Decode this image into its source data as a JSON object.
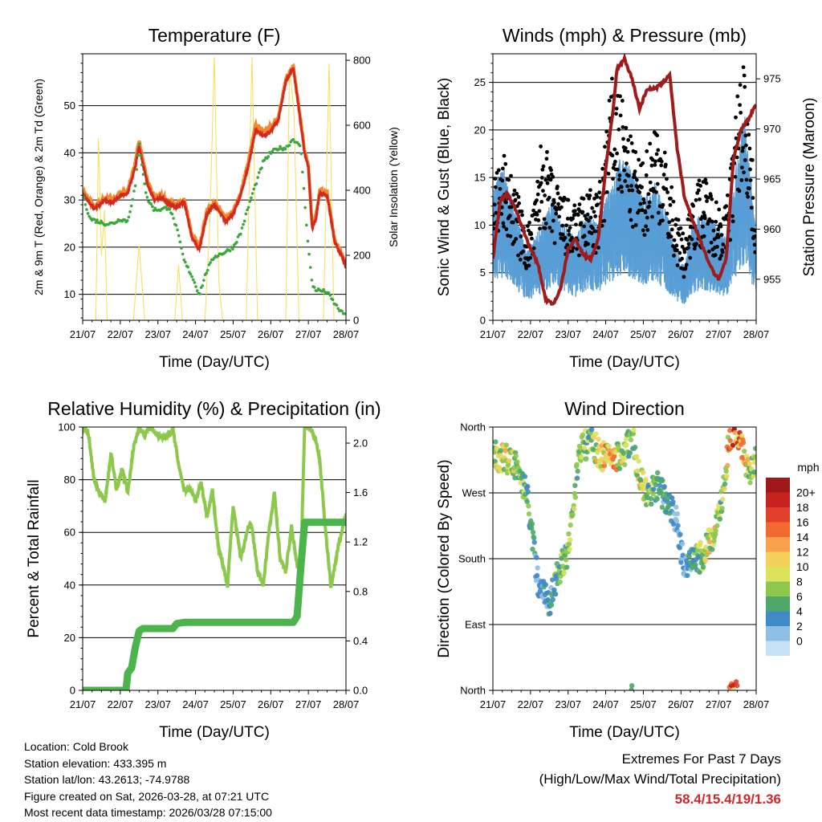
{
  "x_ticks": [
    "21/07",
    "22/07",
    "23/07",
    "24/07",
    "25/07",
    "26/07",
    "27/07",
    "28/07"
  ],
  "colors": {
    "t2m": "#d42a1e",
    "t9m": "#f2892f",
    "td": "#3aa83a",
    "solar": "#f7dd55",
    "wind": "#5a9ed6",
    "gust": "#000000",
    "pressure": "#a01c1c",
    "rh": "#8cc84b",
    "precip": "#4bb44b"
  },
  "chart_data": [
    {
      "type": "line",
      "title": "Temperature (F)",
      "xlabel": "Time (Day/UTC)",
      "ylabel": "2m & 9m T (Red, Orange) & 2m Td (Green)",
      "y2label": "Solar Insolation (Yellow)",
      "xlim": [
        0,
        7
      ],
      "ylim": [
        4.5,
        61
      ],
      "y2lim": [
        0,
        820
      ],
      "yticks": [
        "10",
        "20",
        "30",
        "40",
        "50"
      ],
      "y2ticks": [
        "0",
        "200",
        "400",
        "600",
        "800"
      ],
      "grid": true,
      "series": [
        {
          "name": "2m T",
          "axis": "y1",
          "x": [
            0,
            0.3,
            0.6,
            0.8,
            1.0,
            1.2,
            1.4,
            1.5,
            1.7,
            1.9,
            2.1,
            2.3,
            2.5,
            2.7,
            2.8,
            2.9,
            3.1,
            3.3,
            3.5,
            3.8,
            4.0,
            4.2,
            4.4,
            4.6,
            4.8,
            5.0,
            5.2,
            5.4,
            5.6,
            5.8,
            5.9,
            6.0,
            6.1,
            6.2,
            6.3,
            6.5,
            6.7,
            6.9,
            7.0
          ],
          "values": [
            31.5,
            28,
            30,
            29.5,
            31,
            31.5,
            37,
            41.5,
            34,
            30,
            30.5,
            29,
            28.5,
            29.5,
            26,
            22,
            19.5,
            27,
            29,
            25.5,
            27,
            31,
            37,
            45,
            43.5,
            44.5,
            47,
            55,
            58,
            46,
            40,
            37,
            24,
            26,
            31.5,
            31,
            21,
            18,
            15.5
          ]
        },
        {
          "name": "9m T",
          "axis": "y1",
          "x": [
            0,
            0.3,
            0.6,
            0.8,
            1.0,
            1.2,
            1.4,
            1.5,
            1.7,
            1.9,
            2.1,
            2.3,
            2.5,
            2.7,
            2.8,
            2.9,
            3.1,
            3.3,
            3.5,
            3.8,
            4.0,
            4.2,
            4.4,
            4.6,
            4.8,
            5.0,
            5.2,
            5.4,
            5.6,
            5.8,
            5.9,
            6.0,
            6.1,
            6.2,
            6.3,
            6.5,
            6.7,
            6.9,
            7.0
          ],
          "values": [
            32,
            28.5,
            30.5,
            30,
            31.5,
            32,
            38,
            42.5,
            34.5,
            30.5,
            31,
            29.5,
            29,
            30,
            26.5,
            22.5,
            20,
            27.5,
            29.5,
            26,
            27.5,
            31.5,
            38,
            46,
            44.5,
            45.5,
            47.5,
            55.5,
            58.4,
            46.5,
            40.5,
            37.5,
            24.5,
            26.5,
            32,
            31.5,
            21.5,
            18.5,
            16
          ]
        },
        {
          "name": "2m Td",
          "axis": "y1",
          "x": [
            0,
            0.2,
            0.4,
            0.6,
            0.8,
            1.0,
            1.2,
            1.4,
            1.5,
            1.7,
            1.9,
            2.1,
            2.3,
            2.5,
            2.7,
            2.9,
            3.1,
            3.3,
            3.5,
            3.8,
            4.0,
            4.2,
            4.5,
            4.8,
            5.0,
            5.2,
            5.4,
            5.6,
            5.8,
            5.9,
            6.0,
            6.1,
            6.2,
            6.5,
            6.7,
            6.9,
            7.0
          ],
          "values": [
            31,
            26,
            25.5,
            25,
            25,
            26,
            25.5,
            33,
            42,
            30.5,
            28,
            28,
            28.5,
            24,
            17,
            14,
            10,
            15,
            18,
            19,
            20,
            23,
            31,
            38,
            40,
            41,
            41,
            43,
            41,
            30,
            20,
            12,
            11,
            10.5,
            8,
            6,
            6
          ]
        },
        {
          "name": "Solar Insolation",
          "axis": "y2",
          "x": [
            0.35,
            0.42,
            0.5,
            0.58,
            0.65,
            1.35,
            1.5,
            1.65,
            2.45,
            2.55,
            2.65,
            3.25,
            3.38,
            3.5,
            3.62,
            3.72,
            4.35,
            4.5,
            4.65,
            5.4,
            5.5,
            5.62,
            5.75,
            6.4,
            6.55,
            6.68
          ],
          "values": [
            0,
            560,
            200,
            340,
            0,
            0,
            230,
            0,
            0,
            170,
            0,
            0,
            300,
            810,
            120,
            0,
            0,
            810,
            0,
            0,
            780,
            640,
            0,
            0,
            790,
            0
          ]
        }
      ]
    },
    {
      "type": "scatter",
      "title": "Winds (mph) & Pressure (mb)",
      "xlabel": "Time (Day/UTC)",
      "ylabel": "Sonic Wind & Gust (Blue, Black)",
      "y2label": "Station Pressure (Maroon)",
      "xlim": [
        0,
        7
      ],
      "ylim": [
        0,
        28
      ],
      "y2lim": [
        950.9,
        977.5
      ],
      "yticks": [
        "0",
        "5",
        "10",
        "15",
        "20",
        "25"
      ],
      "y2ticks": [
        "955",
        "960",
        "965",
        "970",
        "975"
      ],
      "grid": true,
      "series": [
        {
          "name": "Sonic Wind",
          "axis": "y1",
          "x": [
            0,
            0.3,
            0.6,
            0.9,
            1.1,
            1.3,
            1.6,
            1.9,
            2.2,
            2.5,
            2.8,
            3.0,
            3.2,
            3.4,
            3.7,
            4.0,
            4.3,
            4.6,
            4.9,
            5.1,
            5.3,
            5.6,
            5.9,
            6.2,
            6.5,
            6.7,
            7.0
          ],
          "values": [
            10,
            11,
            8,
            5,
            6,
            7,
            9,
            7,
            6,
            8,
            7,
            9,
            10,
            12,
            11,
            9,
            10,
            8,
            5,
            4,
            7,
            8,
            7,
            6,
            12,
            15,
            6
          ]
        },
        {
          "name": "Gust",
          "axis": "y1",
          "x": [
            0,
            0.3,
            0.6,
            0.9,
            1.1,
            1.3,
            1.6,
            1.9,
            2.2,
            2.5,
            2.8,
            3.0,
            3.2,
            3.4,
            3.7,
            4.0,
            4.3,
            4.6,
            4.9,
            5.1,
            5.3,
            5.6,
            5.9,
            6.2,
            6.5,
            6.7,
            7.0
          ],
          "values": [
            14,
            16,
            13,
            9,
            11,
            18,
            14,
            12,
            11,
            13,
            12,
            19,
            24,
            22,
            17,
            15,
            20,
            16,
            10,
            8,
            13,
            14,
            12,
            11,
            22,
            26,
            10
          ]
        },
        {
          "name": "Station Pressure",
          "axis": "y2",
          "x": [
            0,
            0.2,
            0.4,
            0.6,
            0.8,
            1.0,
            1.2,
            1.4,
            1.6,
            1.8,
            2.0,
            2.2,
            2.4,
            2.6,
            2.8,
            3.0,
            3.2,
            3.3,
            3.5,
            3.7,
            3.9,
            4.1,
            4.3,
            4.5,
            4.7,
            4.9,
            5.1,
            5.3,
            5.5,
            5.7,
            5.9,
            6.0,
            6.2,
            6.4,
            6.6,
            6.8,
            7.0
          ],
          "values": [
            957,
            963,
            963.5,
            962,
            960,
            958,
            956.5,
            953,
            952.5,
            954,
            958,
            959,
            957.5,
            957,
            959,
            966,
            972,
            976,
            977,
            975,
            972,
            974,
            974,
            974.5,
            975.5,
            968,
            963,
            961,
            959,
            957,
            955.5,
            955,
            957,
            967,
            970,
            971,
            972.5
          ]
        }
      ]
    },
    {
      "type": "line",
      "title": "Relative Humidity (%) & Precipitation (in)",
      "xlabel": "Time (Day/UTC)",
      "ylabel": "Percent & Total Rainfall",
      "xlim": [
        0,
        7
      ],
      "ylim": [
        0,
        100
      ],
      "y2lim": [
        0,
        2.13
      ],
      "yticks": [
        "0",
        "20",
        "40",
        "60",
        "80",
        "100"
      ],
      "y2ticks": [
        "0.0",
        "0.4",
        "0.8",
        "1.2",
        "1.6",
        "2.0"
      ],
      "grid": true,
      "series": [
        {
          "name": "Relative Humidity",
          "axis": "y1",
          "x": [
            0,
            0.15,
            0.3,
            0.45,
            0.6,
            0.75,
            0.9,
            1.05,
            1.2,
            1.35,
            1.5,
            1.65,
            1.8,
            2.0,
            2.2,
            2.4,
            2.55,
            2.7,
            2.85,
            3.0,
            3.15,
            3.3,
            3.45,
            3.6,
            3.75,
            3.85,
            4.0,
            4.2,
            4.4,
            4.5,
            4.65,
            4.8,
            4.95,
            5.1,
            5.25,
            5.4,
            5.55,
            5.7,
            5.8,
            5.9,
            6.05,
            6.2,
            6.3,
            6.45,
            6.6,
            6.8,
            7.0
          ],
          "values": [
            100,
            98,
            80,
            75,
            72,
            90,
            76,
            84,
            75,
            92,
            100,
            97,
            100,
            97,
            96,
            99,
            86,
            76,
            77,
            72,
            79,
            66,
            76,
            55,
            46,
            40,
            70,
            50,
            62,
            62,
            45,
            40,
            60,
            75,
            50,
            45,
            62,
            48,
            46,
            100,
            100,
            95,
            88,
            62,
            39,
            55,
            67
          ]
        },
        {
          "name": "Total Precipitation",
          "axis": "y2",
          "x": [
            0,
            1.15,
            1.2,
            1.3,
            1.4,
            1.5,
            1.6,
            2.4,
            2.5,
            2.7,
            5.6,
            5.7,
            5.8,
            5.9,
            7.0
          ],
          "values": [
            0,
            0,
            0.14,
            0.18,
            0.35,
            0.48,
            0.5,
            0.5,
            0.54,
            0.55,
            0.55,
            0.6,
            1.0,
            1.36,
            1.36
          ]
        }
      ]
    },
    {
      "type": "scatter",
      "title": "Wind Direction",
      "xlabel": "Time (Day/UTC)",
      "ylabel": "Direction (Colored By Speed)",
      "xlim": [
        0,
        7
      ],
      "ylim": [
        0,
        360
      ],
      "yticks": [
        "North",
        "East",
        "South",
        "West",
        "North"
      ],
      "grid": true,
      "legend": {
        "title": "mph",
        "labels": [
          "20+",
          "18",
          "16",
          "14",
          "12",
          "10",
          "8",
          "6",
          "4",
          "2",
          "0"
        ],
        "colors": [
          "#a01818",
          "#c8221e",
          "#e0402c",
          "#f26a30",
          "#f8a04a",
          "#f2d05a",
          "#dce25a",
          "#8cc84b",
          "#4fa868",
          "#3f8ac8",
          "#8ec0e6",
          "#c6e2f4"
        ]
      },
      "series": [
        {
          "name": "Direction",
          "x": [
            0.1,
            0.4,
            0.7,
            0.9,
            1.2,
            1.5,
            1.8,
            2.0,
            2.3,
            2.6,
            2.9,
            3.2,
            3.5,
            3.7,
            3.9,
            4.1,
            4.4,
            4.7,
            4.9,
            5.1,
            5.3,
            5.6,
            5.9,
            6.1,
            6.3,
            6.5,
            6.8,
            7.0
          ],
          "values": [
            320,
            315,
            300,
            270,
            150,
            120,
            170,
            190,
            330,
            340,
            320,
            315,
            325,
            350,
            290,
            265,
            280,
            250,
            230,
            160,
            175,
            185,
            220,
            260,
            350,
            355,
            300,
            320
          ],
          "speeds": [
            11,
            12,
            9,
            7,
            4,
            5,
            8,
            10,
            9,
            8,
            14,
            16,
            9,
            8,
            12,
            10,
            6,
            5,
            3,
            4,
            6,
            10,
            12,
            8,
            18,
            19,
            11,
            9
          ]
        }
      ]
    }
  ],
  "info": {
    "location": "Location: Cold Brook",
    "elevation": "Station elevation: 433.395 m",
    "latlon": "Station lat/lon: 43.2613; -74.9788",
    "created": "Figure created on Sat, 2026-03-28, at 07:21 UTC",
    "recent": "Most recent data timestamp: 2026/03/28 07:15:00"
  },
  "extremes": {
    "title": "Extremes For Past 7 Days",
    "subtitle": "(High/Low/Max Wind/Total Precipitation)",
    "values": "58.4/15.4/19/1.36"
  }
}
